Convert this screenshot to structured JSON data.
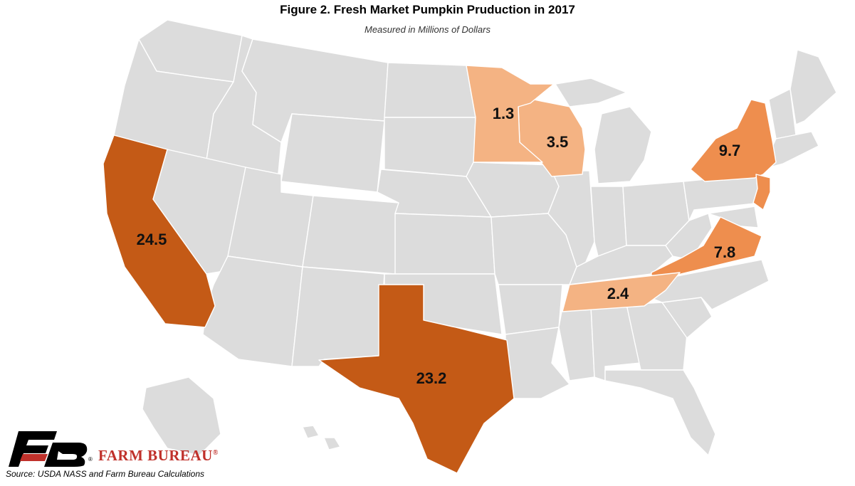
{
  "title": "Figure 2. Fresh Market Pumpkin Pruduction in 2017",
  "subtitle": "Measured in Millions of Dollars",
  "source": "Source: USDA NASS and Farm Bureau Calculations",
  "organization": "FARM BUREAU",
  "colors": {
    "background": "#ffffff",
    "base_state": "#dcdcdc",
    "state_border": "#ffffff",
    "tier_high": "#c45a16",
    "tier_mid": "#ee8e4e",
    "tier_low": "#f4b383",
    "logo": "#c0312b"
  },
  "chart_data": {
    "type": "choropleth",
    "region": "United States",
    "unit": "Millions of Dollars",
    "year": 2017,
    "values": [
      {
        "state": "California",
        "value": "24.5",
        "tier": "high"
      },
      {
        "state": "Texas",
        "value": "23.2",
        "tier": "high"
      },
      {
        "state": "New York",
        "value": "9.7",
        "tier": "mid"
      },
      {
        "state": "Virginia",
        "value": "7.8",
        "tier": "mid"
      },
      {
        "state": "Wisconsin",
        "value": "3.5",
        "tier": "low"
      },
      {
        "state": "Tennessee",
        "value": "2.4",
        "tier": "low"
      },
      {
        "state": "Minnesota",
        "value": "1.3",
        "tier": "low"
      },
      {
        "state": "New Jersey",
        "value": "",
        "tier": "mid"
      }
    ]
  }
}
